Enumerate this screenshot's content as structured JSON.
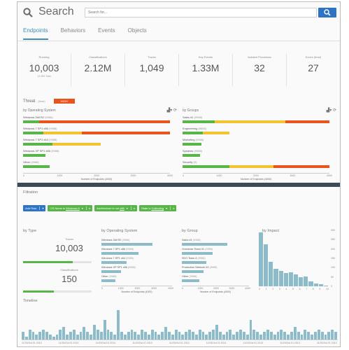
{
  "header": {
    "title": "Search",
    "search_placeholder": "Search for...",
    "tabs": [
      "Endpoints",
      "Behaviors",
      "Events",
      "Objects"
    ]
  },
  "stats": [
    {
      "label": "Running",
      "value": "10,003",
      "sub": "12,353 Total"
    },
    {
      "label": "Classifications",
      "value": "2.12M",
      "sub": ""
    },
    {
      "label": "Traces",
      "value": "1,049",
      "sub": ""
    },
    {
      "label": "Key Events",
      "value": "1.33M",
      "sub": ""
    },
    {
      "label": "Isolated Processes",
      "value": "32",
      "sub": ""
    },
    {
      "label": "Errors (time)",
      "value": "27",
      "sub": ""
    }
  ],
  "threat": {
    "label": "Threat",
    "sub": "(time)",
    "badge": "HIGH"
  },
  "by_os": {
    "title": "by Operating System",
    "rows": [
      {
        "name": "Windows 2k8 R2",
        "count": "(9988)",
        "segs": [
          0.11,
          0.0,
          0.89
        ]
      },
      {
        "name": "Windows 7 SP1 x86",
        "count": "(9988)",
        "segs": [
          0.14,
          0.26,
          0.6
        ]
      },
      {
        "name": "Windows 7 SP1 x64",
        "count": "(9988)",
        "segs": [
          0.2,
          0.33,
          0.0
        ]
      },
      {
        "name": "Windows XP SP1 x86",
        "count": "(9988)",
        "segs": [
          0.15,
          0.0,
          0.0
        ]
      },
      {
        "name": "Other",
        "count": "(9988)",
        "segs": [
          0.18,
          0.0,
          0.0
        ]
      }
    ],
    "ticks": [
      "0",
      "1000",
      "2000",
      "3000",
      "4000"
    ],
    "axis_title": "Number of Endpoints (4000)"
  },
  "by_group": {
    "title": "by Groups",
    "rows": [
      {
        "name": "Sales #1",
        "count": "(9988)",
        "segs": [
          0.22,
          0.48,
          0.3
        ]
      },
      {
        "name": "Engineering",
        "count": "(8686)",
        "segs": [
          0.14,
          0.18,
          0.0
        ]
      },
      {
        "name": "Marketing",
        "count": "(9988)",
        "segs": [
          0.13,
          0.0,
          0.0
        ]
      },
      {
        "name": "Systems",
        "count": "(9988)",
        "segs": [
          0.12,
          0.0,
          0.0
        ]
      },
      {
        "name": "Security",
        "count": "(9)",
        "segs": [
          0.32,
          0.3,
          0.38
        ]
      }
    ],
    "ticks": [
      "0",
      "1000",
      "2000",
      "3000",
      "4000"
    ],
    "axis_title": "Number of Endpoints (4000)"
  },
  "filtration": {
    "title": "Filtration",
    "add_rule": "Add Rule",
    "chips": [
      {
        "prefix": "OS Name is",
        "value": "Windows 8"
      },
      {
        "prefix": "Architecture is not",
        "value": "x86"
      },
      {
        "prefix": "State is",
        "value": "Collecting"
      }
    ]
  },
  "by_type": {
    "title": "by Type",
    "traces_label": "Traces",
    "traces_value": "10,003",
    "traces_fill": 0.72,
    "class_label": "Classifications",
    "class_value": "150",
    "class_fill": 0.45
  },
  "bot_os": {
    "title": "by Operating System",
    "rows": [
      {
        "name": "Windows 2k8 R2",
        "count": "(9988)",
        "fill": 0.72
      },
      {
        "name": "Windows 7 SP1 x86",
        "count": "(9988)",
        "fill": 0.52
      },
      {
        "name": "Windows 7 SP1 x64",
        "count": "(9988)",
        "fill": 0.36
      },
      {
        "name": "Windows XP SP1 x86",
        "count": "(9988)",
        "fill": 0.28
      },
      {
        "name": "Other",
        "count": "(9988)",
        "fill": 0.2
      }
    ],
    "ticks": [
      "0",
      "1000",
      "2000",
      "3000",
      "4000"
    ],
    "axis_title": "Number of Endpoints (4000)"
  },
  "bot_group": {
    "title": "by Group",
    "rows": [
      {
        "name": "Sales #1",
        "count": "(9988)",
        "fill": 0.68
      },
      {
        "name": "Overdose Team 01",
        "count": "(9988)",
        "fill": 0.46
      },
      {
        "name": "SEO Team 6",
        "count": "(9988)",
        "fill": 0.36
      },
      {
        "name": "Production Network 03",
        "count": "(9988)",
        "fill": 0.32
      },
      {
        "name": "Other",
        "count": "(9988)",
        "fill": 0.26
      }
    ],
    "ticks": [
      "0",
      "1000",
      "2000",
      "3000",
      "4000"
    ],
    "axis_title": "Number of Endpoints (4000)"
  },
  "impact": {
    "title": "by Impact",
    "values": [
      420,
      330,
      190,
      140,
      120,
      105,
      110,
      95,
      70,
      75,
      40,
      20,
      15,
      5
    ],
    "ymax": 450,
    "yticks": [
      "300",
      "250",
      "200",
      "150",
      "100",
      "50",
      "0"
    ],
    "xticks": [
      "0",
      "1",
      "2",
      "3",
      "4",
      "5",
      "6",
      "7",
      "8",
      "9",
      "10"
    ]
  },
  "timeline": {
    "title": "Timeline",
    "values": [
      3,
      1,
      4,
      3,
      2,
      3,
      4,
      3,
      2,
      1,
      2,
      4,
      5,
      2,
      3,
      4,
      2,
      3,
      5,
      3,
      2,
      6,
      4,
      3,
      8,
      4,
      3,
      2,
      12,
      3,
      2,
      3,
      4,
      3,
      2,
      4,
      3,
      2,
      4,
      3,
      2,
      3,
      5,
      3,
      2,
      4,
      3,
      2,
      3,
      4,
      3,
      2,
      4,
      3,
      2,
      3,
      4,
      6,
      3,
      2,
      3,
      4,
      2,
      3,
      4,
      3,
      2,
      8,
      4,
      3,
      2,
      3,
      4,
      3,
      2,
      3,
      4,
      3,
      2,
      3,
      5,
      3,
      2,
      4,
      3,
      2,
      3,
      4,
      3,
      2,
      3,
      4,
      3
    ],
    "ymax": 13,
    "ticks": [
      "11/23/Oct 01 2013",
      "11/23/Oct 01 2013",
      "11/23/Oct 01 2013",
      "11/23/Oct 01 2013",
      "11/23/Oct 01 2013",
      "11/23/Oct 01 2013",
      "11/23/Oct 01 2013",
      "11/23/Oct 01 2013",
      "11/23/Oct 01 2013"
    ]
  },
  "colors": {
    "green": "#58b548",
    "yellow": "#f2c22f",
    "orange": "#e8541e",
    "blue": "#2e74c4",
    "teal": "#8cbcca"
  }
}
